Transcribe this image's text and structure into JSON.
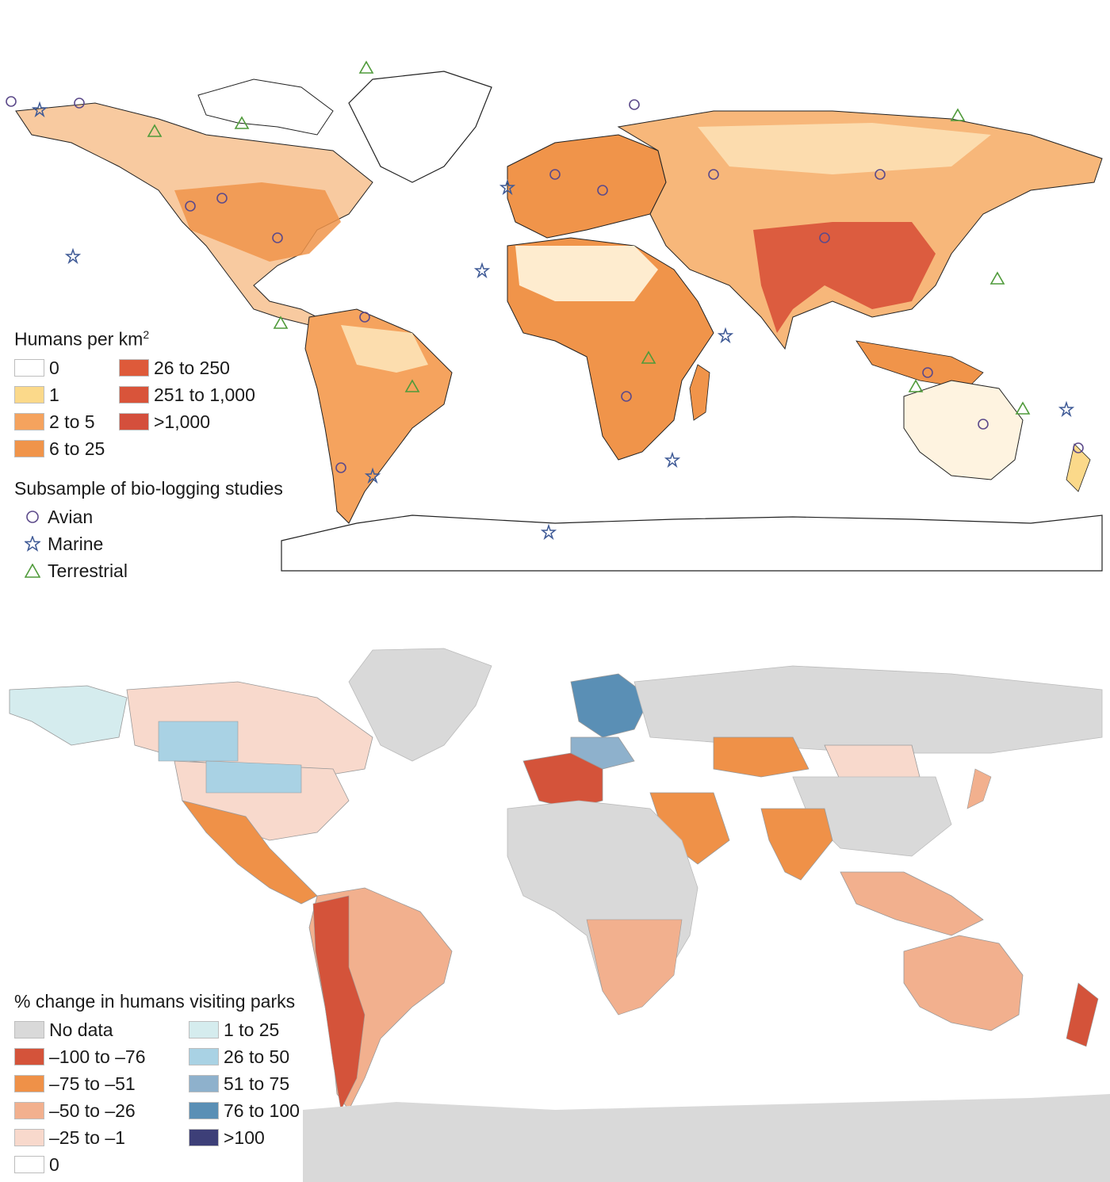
{
  "top_map": {
    "legend_density": {
      "title": "Humans per km",
      "title_sup": "2",
      "items": [
        {
          "label": "0",
          "color": "#ffffff"
        },
        {
          "label": "1",
          "color": "#fbd98a"
        },
        {
          "label": "2 to 5",
          "color": "#f5a35e"
        },
        {
          "label": "6 to 25",
          "color": "#f0944a"
        },
        {
          "label": "26 to 250",
          "color": "#de5a3a"
        },
        {
          "label": "251 to 1,000",
          "color": "#d9543a"
        },
        {
          "label": ">1,000",
          "color": "#d44f3c"
        }
      ]
    },
    "legend_studies": {
      "title": "Subsample of bio-logging studies",
      "items": [
        {
          "label": "Avian",
          "icon": "circle-icon",
          "color": "#5c4a8a"
        },
        {
          "label": "Marine",
          "icon": "star-icon",
          "color": "#3f5a96"
        },
        {
          "label": "Terrestrial",
          "icon": "triangle-icon",
          "color": "#4f9a3a"
        }
      ]
    }
  },
  "bottom_map": {
    "legend_change": {
      "title": "% change in humans visiting parks",
      "items": [
        {
          "label": "No data",
          "color": "#d9d9d9"
        },
        {
          "label": "–100 to –76",
          "color": "#d4533a"
        },
        {
          "label": "–75 to –51",
          "color": "#ef9148"
        },
        {
          "label": "–50 to –26",
          "color": "#f2b08e"
        },
        {
          "label": "–25 to –1",
          "color": "#f8d9cc"
        },
        {
          "label": "0",
          "color": "#ffffff"
        },
        {
          "label": "1 to 25",
          "color": "#d5ecee"
        },
        {
          "label": "26 to 50",
          "color": "#a9d2e4"
        },
        {
          "label": "51 to 75",
          "color": "#8eb1cc"
        },
        {
          "label": "76 to 100",
          "color": "#5a8fb5"
        },
        {
          "label": ">100",
          "color": "#3d3f78"
        }
      ]
    }
  }
}
